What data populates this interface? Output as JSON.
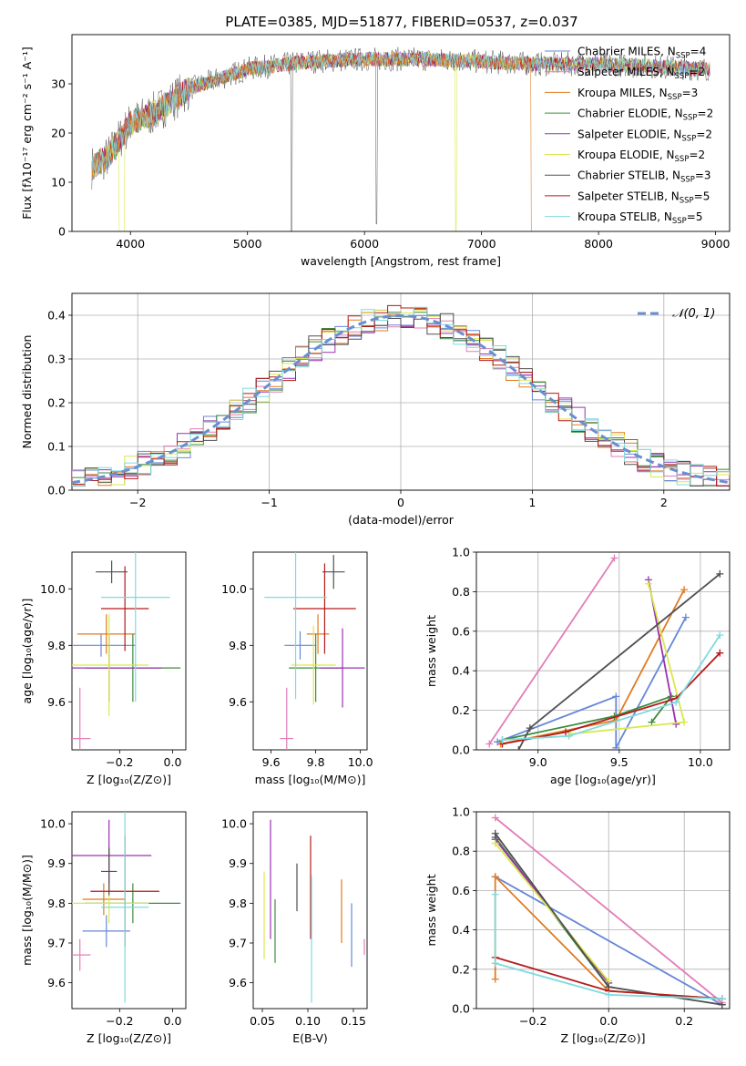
{
  "title": "PLATE=0385, MJD=51877, FIBERID=0537, z=0.037",
  "legend_series": [
    {
      "name": "Chabrier MILES, N",
      "sub": "SSP",
      "tail": "=4",
      "color": "#6787d8"
    },
    {
      "name": "Salpeter MILES, N",
      "sub": "SSP",
      "tail": "=2",
      "color": "#e27db8"
    },
    {
      "name": "Kroupa MILES, N",
      "sub": "SSP",
      "tail": "=3",
      "color": "#e07b22"
    },
    {
      "name": "Chabrier ELODIE, N",
      "sub": "SSP",
      "tail": "=2",
      "color": "#3d8b3d"
    },
    {
      "name": "Salpeter ELODIE, N",
      "sub": "SSP",
      "tail": "=2",
      "color": "#9932b0"
    },
    {
      "name": "Kroupa ELODIE, N",
      "sub": "SSP",
      "tail": "=2",
      "color": "#d9e84c"
    },
    {
      "name": "Chabrier STELIB, N",
      "sub": "SSP",
      "tail": "=3",
      "color": "#505050"
    },
    {
      "name": "Salpeter STELIB, N",
      "sub": "SSP",
      "tail": "=5",
      "color": "#b51a1a"
    },
    {
      "name": "Kroupa STELIB, N",
      "sub": "SSP",
      "tail": "=5",
      "color": "#7fdadf"
    }
  ],
  "chart_data": [
    {
      "id": "spectrum",
      "type": "line",
      "xlabel": "wavelength [Angstrom, rest frame]",
      "ylabel": "Flux [fλ10⁻¹⁷ erg cm⁻² s⁻¹ A⁻¹]",
      "xlim": [
        3500,
        9120
      ],
      "ylim": [
        0,
        40
      ],
      "xticks": [
        "4000",
        "5000",
        "6000",
        "7000",
        "8000",
        "9000"
      ],
      "yticks": [
        "0",
        "10",
        "20",
        "30"
      ],
      "continuum": {
        "x": [
          3670,
          3800,
          4000,
          4200,
          4500,
          5000,
          5500,
          6000,
          6500,
          7000,
          7500,
          8000,
          8500,
          8900
        ],
        "y": [
          13,
          15,
          22,
          24,
          29,
          33,
          34.5,
          35,
          35,
          34.5,
          34,
          34,
          33.5,
          33
        ]
      },
      "absorption_lines": [
        {
          "x": 5375,
          "y": 0
        },
        {
          "x": 6105,
          "y": 1.5
        },
        {
          "x": 6780,
          "y": 0
        },
        {
          "x": 3935,
          "y": 0
        }
      ],
      "red_cutoff": 7420
    },
    {
      "id": "residuals",
      "type": "histogram",
      "xlabel": "(data-model)/error",
      "ylabel": "Normed distribution",
      "xlim": [
        -2.5,
        2.5
      ],
      "ylim": [
        0,
        0.45
      ],
      "xticks": [
        "−2",
        "−1",
        "0",
        "1",
        "2"
      ],
      "yticks": [
        "0.0",
        "0.1",
        "0.2",
        "0.3",
        "0.4"
      ],
      "legend": "𝒩(0, 1)",
      "grid": true
    },
    {
      "id": "age-vs-Z",
      "type": "errorbar",
      "xlabel": "Z [log₁₀(Z/Z⊙)]",
      "ylabel": "age  [log₁₀(age/yr)]",
      "xlim": [
        -0.38,
        0.05
      ],
      "ylim": [
        9.43,
        10.13
      ],
      "xticks": [
        "−0.2",
        "0.0"
      ],
      "yticks": [
        "9.6",
        "9.8",
        "10.0"
      ],
      "points": [
        {
          "x": -0.27,
          "y": 9.8,
          "xerr": 0.13,
          "yerr": 0.04,
          "color": "#6787d8"
        },
        {
          "x": -0.35,
          "y": 9.47,
          "xerr": 0.04,
          "yerr": 0.18,
          "color": "#e27db8"
        },
        {
          "x": -0.25,
          "y": 9.84,
          "xerr": 0.11,
          "yerr": 0.07,
          "color": "#e07b22"
        },
        {
          "x": -0.15,
          "y": 9.72,
          "xerr": 0.18,
          "yerr": 0.12,
          "color": "#3d8b3d"
        },
        {
          "x": -0.24,
          "y": 9.72,
          "xerr": 0.2,
          "yerr": 0.12,
          "color": "#9932b0"
        },
        {
          "x": -0.24,
          "y": 9.73,
          "xerr": 0.15,
          "yerr": 0.18,
          "color": "#d9e84c"
        },
        {
          "x": -0.23,
          "y": 10.06,
          "xerr": 0.06,
          "yerr": 0.04,
          "color": "#505050"
        },
        {
          "x": -0.18,
          "y": 9.93,
          "xerr": 0.09,
          "yerr": 0.15,
          "color": "#b51a1a"
        },
        {
          "x": -0.14,
          "y": 9.97,
          "xerr": 0.13,
          "yerr": 0.37,
          "color": "#7fdadf"
        }
      ]
    },
    {
      "id": "age-vs-mass",
      "type": "errorbar",
      "xlabel": "mass [log₁₀(M/M⊙)]",
      "ylabel": "",
      "xlim": [
        9.52,
        10.03
      ],
      "ylim": [
        9.43,
        10.13
      ],
      "xticks": [
        "9.6",
        "9.8",
        "10.0"
      ],
      "yticks": [
        "9.6",
        "9.8",
        "10.0"
      ],
      "points": [
        {
          "x": 9.73,
          "y": 9.8,
          "xerr": 0.07,
          "yerr": 0.05,
          "color": "#6787d8"
        },
        {
          "x": 9.67,
          "y": 9.47,
          "xerr": 0.03,
          "yerr": 0.18,
          "color": "#e27db8"
        },
        {
          "x": 9.81,
          "y": 9.84,
          "xerr": 0.05,
          "yerr": 0.07,
          "color": "#e07b22"
        },
        {
          "x": 9.8,
          "y": 9.72,
          "xerr": 0.12,
          "yerr": 0.12,
          "color": "#3d8b3d"
        },
        {
          "x": 9.92,
          "y": 9.72,
          "xerr": 0.1,
          "yerr": 0.14,
          "color": "#9932b0"
        },
        {
          "x": 9.79,
          "y": 9.73,
          "xerr": 0.1,
          "yerr": 0.14,
          "color": "#d9e84c"
        },
        {
          "x": 9.88,
          "y": 10.06,
          "xerr": 0.05,
          "yerr": 0.06,
          "color": "#505050"
        },
        {
          "x": 9.84,
          "y": 9.93,
          "xerr": 0.14,
          "yerr": 0.16,
          "color": "#b51a1a"
        },
        {
          "x": 9.71,
          "y": 9.97,
          "xerr": 0.14,
          "yerr": 0.36,
          "color": "#7fdadf"
        }
      ]
    },
    {
      "id": "mass-weight-vs-age",
      "type": "line",
      "xlabel": "age  [log₁₀(age/yr)]",
      "ylabel": "mass weight",
      "xlim": [
        8.62,
        10.18
      ],
      "ylim": [
        0,
        1
      ],
      "xticks": [
        "9.0",
        "9.5",
        "10.0"
      ],
      "yticks": [
        "0.0",
        "0.2",
        "0.4",
        "0.6",
        "0.8",
        "1.0"
      ],
      "grid": true,
      "series": [
        {
          "color": "#6787d8",
          "x": [
            8.75,
            9.48,
            9.48,
            9.91
          ],
          "y": [
            0.04,
            0.27,
            0.01,
            0.67
          ]
        },
        {
          "color": "#e27db8",
          "x": [
            8.7,
            9.47
          ],
          "y": [
            0.03,
            0.97
          ]
        },
        {
          "color": "#e07b22",
          "x": [
            8.77,
            9.48,
            9.9
          ],
          "y": [
            0.03,
            0.15,
            0.81
          ]
        },
        {
          "color": "#3d8b3d",
          "x": [
            8.78,
            9.47,
            9.82,
            9.7
          ],
          "y": [
            0.05,
            0.17,
            0.27,
            0.14
          ]
        },
        {
          "color": "#9932b0",
          "x": [
            9.68,
            9.85
          ],
          "y": [
            0.86,
            0.13
          ]
        },
        {
          "color": "#d9e84c",
          "x": [
            9.68,
            9.9,
            9.2
          ],
          "y": [
            0.84,
            0.14,
            0.08
          ]
        },
        {
          "color": "#505050",
          "x": [
            8.88,
            8.95,
            10.12
          ],
          "y": [
            0.0,
            0.11,
            0.89
          ]
        },
        {
          "color": "#b51a1a",
          "x": [
            8.78,
            9.17,
            9.85,
            10.12
          ],
          "y": [
            0.03,
            0.09,
            0.26,
            0.49
          ]
        },
        {
          "color": "#7fdadf",
          "x": [
            8.78,
            9.19,
            9.85,
            10.12
          ],
          "y": [
            0.05,
            0.07,
            0.24,
            0.58
          ]
        }
      ]
    },
    {
      "id": "mass-vs-Z",
      "type": "errorbar",
      "xlabel": "Z [log₁₀(Z/Z⊙)]",
      "ylabel": "mass [log₁₀(M/M⊙)]",
      "xlim": [
        -0.38,
        0.05
      ],
      "ylim": [
        9.535,
        10.03
      ],
      "xticks": [
        "−0.2",
        "0.0"
      ],
      "yticks": [
        "9.6",
        "9.7",
        "9.8",
        "9.9",
        "10.0"
      ],
      "points": [
        {
          "x": -0.25,
          "y": 9.73,
          "xerr": 0.09,
          "yerr": 0.04,
          "color": "#6787d8"
        },
        {
          "x": -0.35,
          "y": 9.67,
          "xerr": 0.04,
          "yerr": 0.04,
          "color": "#e27db8"
        },
        {
          "x": -0.26,
          "y": 9.81,
          "xerr": 0.08,
          "yerr": 0.04,
          "color": "#e07b22"
        },
        {
          "x": -0.15,
          "y": 9.8,
          "xerr": 0.18,
          "yerr": 0.05,
          "color": "#3d8b3d"
        },
        {
          "x": -0.24,
          "y": 9.92,
          "xerr": 0.16,
          "yerr": 0.09,
          "color": "#9932b0"
        },
        {
          "x": -0.24,
          "y": 9.8,
          "xerr": 0.15,
          "yerr": 0.05,
          "color": "#d9e84c"
        },
        {
          "x": -0.24,
          "y": 9.88,
          "xerr": 0.03,
          "yerr": 0.06,
          "color": "#505050"
        },
        {
          "x": -0.18,
          "y": 9.83,
          "xerr": 0.13,
          "yerr": 0.14,
          "color": "#b51a1a"
        },
        {
          "x": -0.18,
          "y": 9.79,
          "xerr": 0.09,
          "yerr": 0.24,
          "color": "#7fdadf"
        }
      ]
    },
    {
      "id": "mass-vs-EBV",
      "type": "errorbar",
      "xlabel": "E(B-V)",
      "ylabel": "",
      "xlim": [
        0.04,
        0.165
      ],
      "ylim": [
        9.535,
        10.03
      ],
      "xticks": [
        "0.05",
        "0.10",
        "0.15"
      ],
      "yticks": [
        "9.6",
        "9.7",
        "9.8",
        "9.9",
        "10.0"
      ],
      "points": [
        {
          "x": 0.148,
          "y": 9.72,
          "xerr": 0,
          "yerr": 0.08,
          "color": "#6787d8"
        },
        {
          "x": 0.162,
          "y": 9.69,
          "xerr": 0,
          "yerr": 0.02,
          "color": "#e27db8"
        },
        {
          "x": 0.137,
          "y": 9.78,
          "xerr": 0,
          "yerr": 0.08,
          "color": "#e07b22"
        },
        {
          "x": 0.064,
          "y": 9.73,
          "xerr": 0,
          "yerr": 0.08,
          "color": "#3d8b3d"
        },
        {
          "x": 0.059,
          "y": 9.86,
          "xerr": 0,
          "yerr": 0.15,
          "color": "#9932b0"
        },
        {
          "x": 0.052,
          "y": 9.77,
          "xerr": 0,
          "yerr": 0.11,
          "color": "#d9e84c"
        },
        {
          "x": 0.088,
          "y": 9.84,
          "xerr": 0,
          "yerr": 0.06,
          "color": "#505050"
        },
        {
          "x": 0.103,
          "y": 9.84,
          "xerr": 0,
          "yerr": 0.13,
          "color": "#b51a1a"
        },
        {
          "x": 0.104,
          "y": 9.71,
          "xerr": 0,
          "yerr": 0.16,
          "color": "#7fdadf"
        }
      ]
    },
    {
      "id": "mass-weight-vs-Z",
      "type": "line",
      "xlabel": "Z [log₁₀(Z/Z⊙)]",
      "ylabel": "mass weight",
      "xlim": [
        -0.35,
        0.32
      ],
      "ylim": [
        0,
        1
      ],
      "xticks": [
        "−0.2",
        "0.0",
        "0.2"
      ],
      "yticks": [
        "0.0",
        "0.2",
        "0.4",
        "0.6",
        "0.8",
        "1.0"
      ],
      "grid": true,
      "series": [
        {
          "color": "#6787d8",
          "x": [
            -0.3,
            0.3
          ],
          "y": [
            0.67,
            0.02
          ]
        },
        {
          "color": "#e27db8",
          "x": [
            -0.3,
            0.3
          ],
          "y": [
            0.97,
            0.03
          ]
        },
        {
          "color": "#e07b22",
          "x": [
            -0.3,
            -0.3,
            0.0,
            0.3
          ],
          "y": [
            0.15,
            0.67,
            0.09,
            0.05
          ]
        },
        {
          "color": "#3d8b3d",
          "x": [
            -0.3,
            0.0
          ],
          "y": [
            0.87,
            0.11
          ]
        },
        {
          "color": "#9932b0",
          "x": [
            -0.3,
            0.0
          ],
          "y": [
            0.86,
            0.13
          ]
        },
        {
          "color": "#d9e84c",
          "x": [
            -0.3,
            0.0
          ],
          "y": [
            0.84,
            0.14
          ]
        },
        {
          "color": "#505050",
          "x": [
            -0.3,
            0.0,
            0.3
          ],
          "y": [
            0.89,
            0.11,
            0.02
          ]
        },
        {
          "color": "#b51a1a",
          "x": [
            -0.3,
            0.0,
            0.3
          ],
          "y": [
            0.26,
            0.09,
            0.05
          ]
        },
        {
          "color": "#7fdadf",
          "x": [
            -0.3,
            -0.3,
            0.0,
            0.3
          ],
          "y": [
            0.58,
            0.23,
            0.07,
            0.05
          ]
        }
      ]
    }
  ]
}
